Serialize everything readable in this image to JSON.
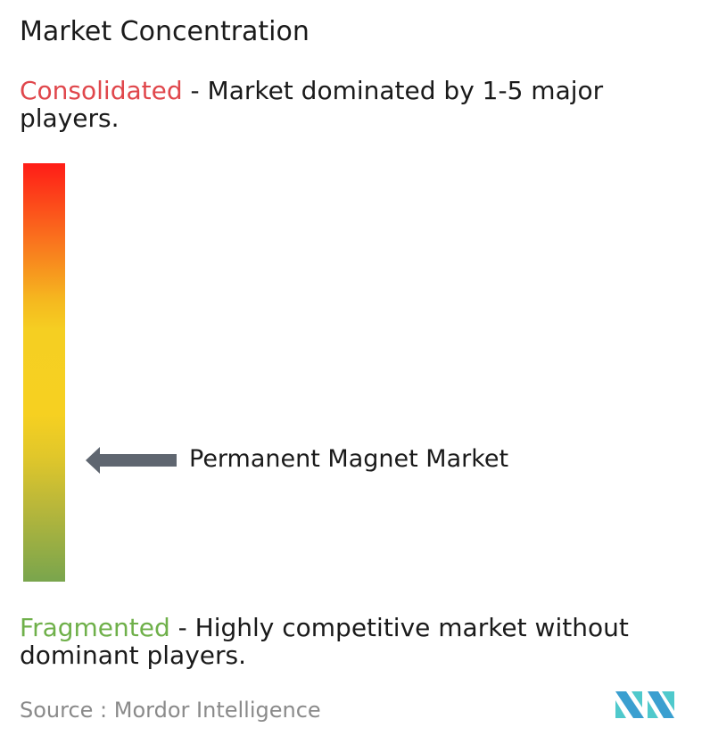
{
  "title": "Market Concentration",
  "consolidated": {
    "label": "Consolidated",
    "description": " - Market dominated by 1-5 major players.",
    "color": "#e0474c"
  },
  "fragmented": {
    "label": "Fragmented",
    "description": " - Highly competitive market without dominant players.",
    "color": "#6fb04a"
  },
  "scale": {
    "top_color": "#ff1c17",
    "middle_color": "#f6d021",
    "bottom_color": "#79a54d"
  },
  "marker": {
    "label": "Permanent Magnet Market",
    "concentration_level": 0.29,
    "arrow_color": "#5f6670",
    "icon": "arrow-left-icon"
  },
  "source": "Source :  Mordor Intelligence",
  "logo": {
    "text": "Mordor Intelligence",
    "colors": [
      "#3a9fd0",
      "#4fc9cc"
    ]
  }
}
